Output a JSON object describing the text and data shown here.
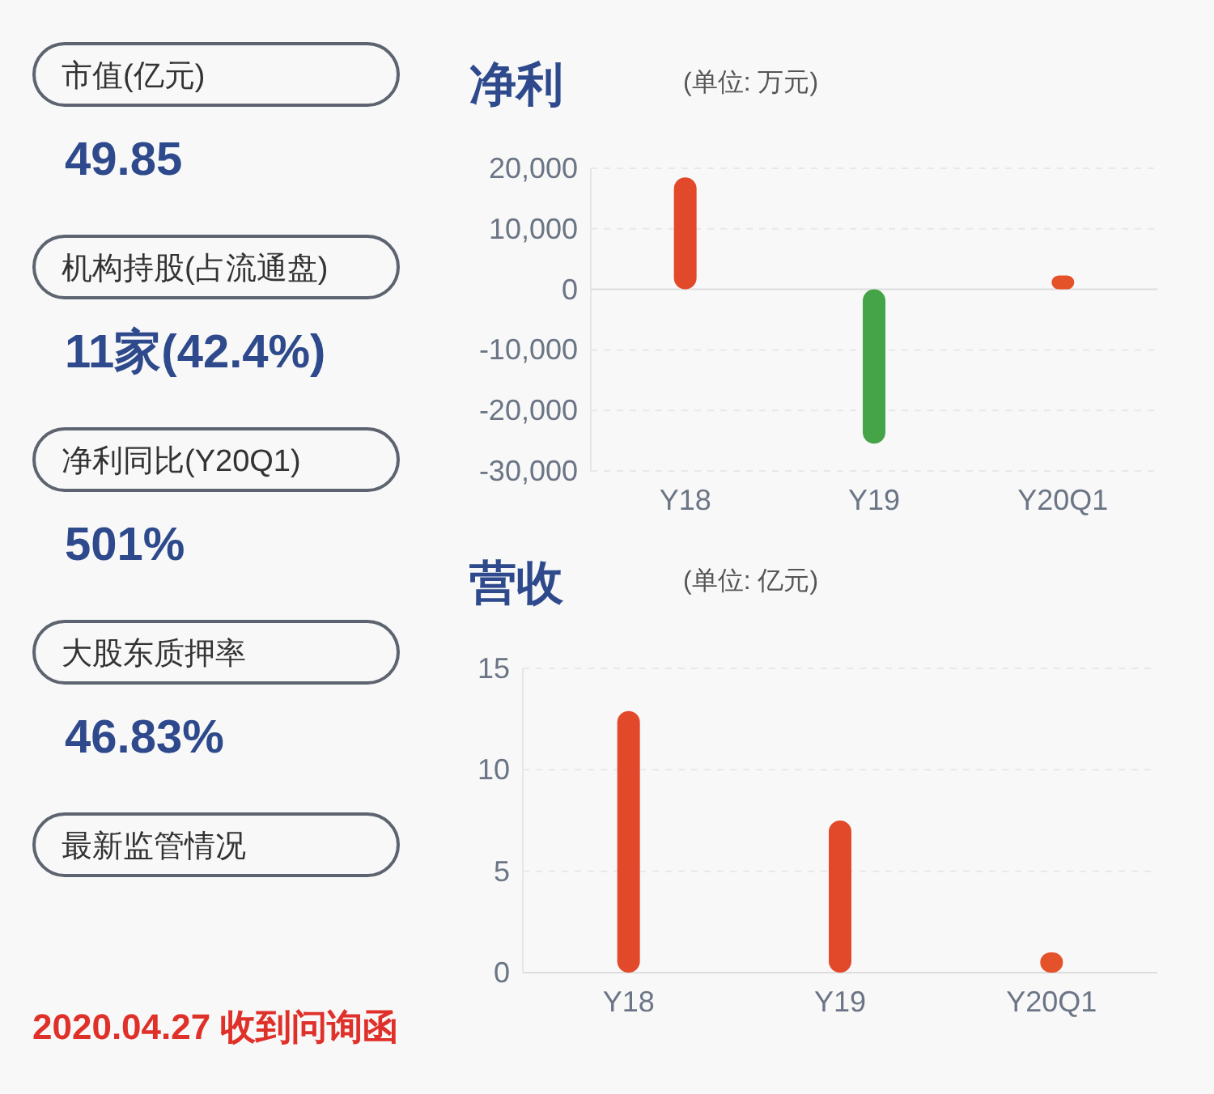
{
  "chart_data": [
    {
      "type": "other",
      "annotations": [
        "市值(亿元)",
        "49.85",
        "机构持股(占流通盘)",
        "11家(42.4%)",
        "净利同比(Y20Q1)",
        "501%",
        "大股东质押率",
        "46.83%",
        "最新监管情况",
        "2020.04.27 收到问询函"
      ]
    },
    {
      "type": "bar",
      "title": "净利",
      "subtitle": "(单位: 万元)",
      "categories": [
        "Y18",
        "Y19",
        "Y20Q1"
      ],
      "values": [
        18500,
        -25500,
        2300
      ],
      "colors": [
        "#e2492a",
        "#44a447",
        "#e4522a"
      ],
      "ylim": [
        -30000,
        20000
      ],
      "yticks": [
        {
          "value": -30000,
          "label": "-30,000"
        },
        {
          "value": -20000,
          "label": "-20,000"
        },
        {
          "value": -10000,
          "label": "-10,000"
        },
        0,
        {
          "value": 10000,
          "label": "10,000"
        },
        {
          "value": 20000,
          "label": "20,000"
        }
      ],
      "grid": "y"
    },
    {
      "type": "bar",
      "title": "营收",
      "subtitle": "(单位: 亿元)",
      "categories": [
        "Y18",
        "Y19",
        "Y20Q1"
      ],
      "values": [
        12.9,
        7.5,
        1.0
      ],
      "colors": [
        "#e2492a",
        "#e2492a",
        "#e4522a"
      ],
      "ylim": [
        0,
        15
      ],
      "yticks": [
        0,
        5,
        10,
        15
      ],
      "grid": "y"
    }
  ]
}
